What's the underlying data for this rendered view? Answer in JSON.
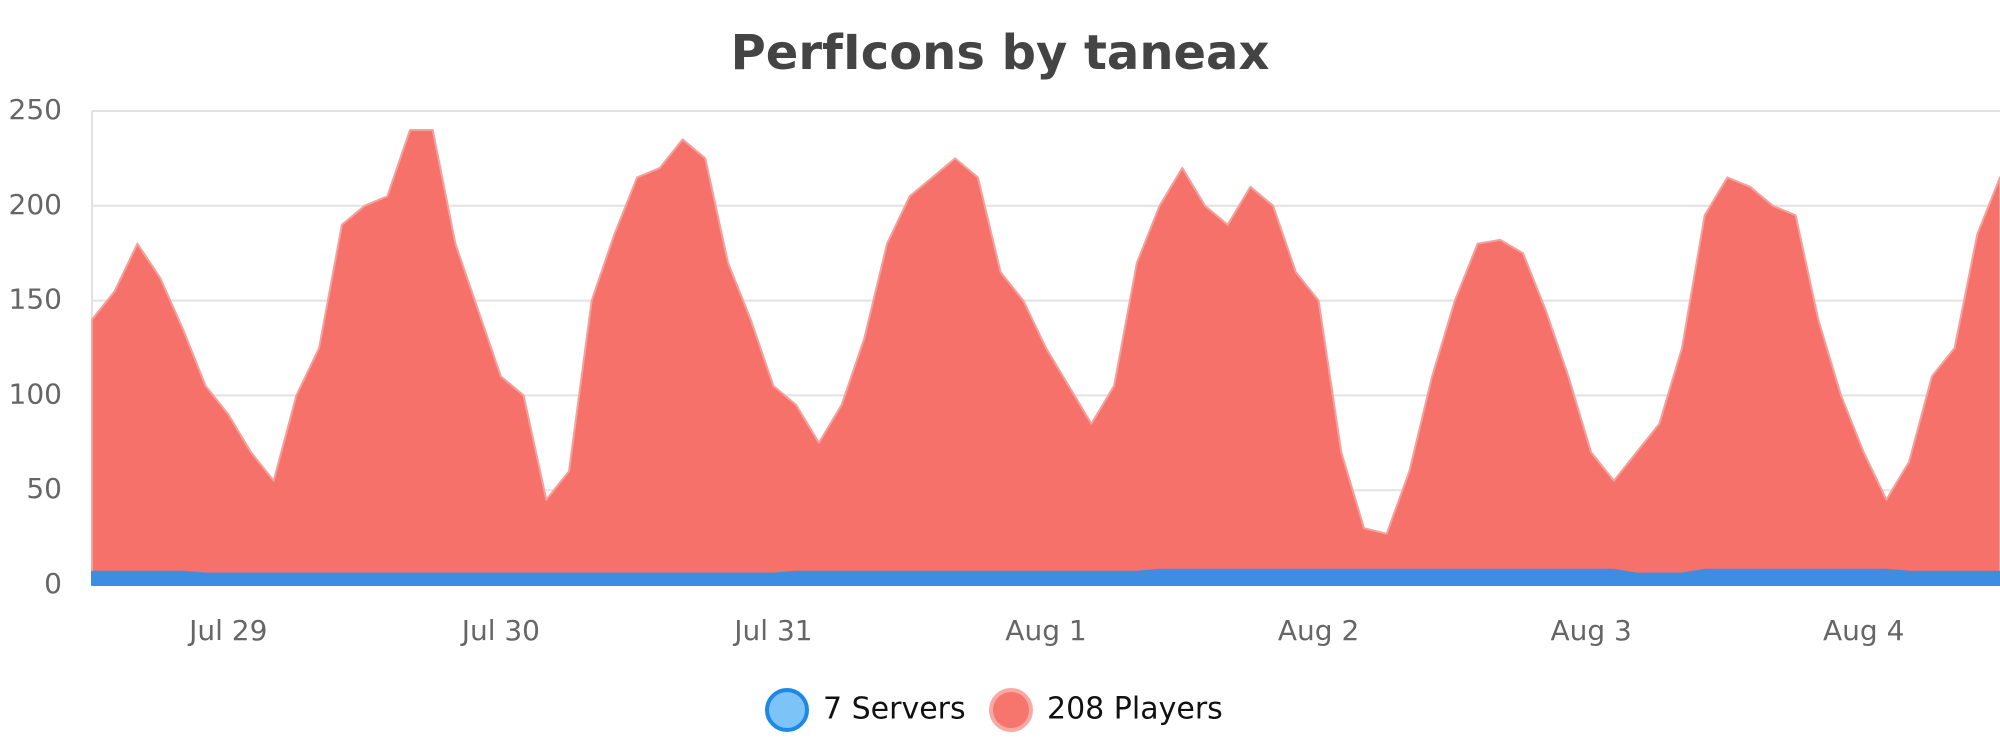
{
  "chart_data": {
    "type": "area",
    "title": "PerfIcons by taneax",
    "categories": [
      null,
      null,
      null,
      null,
      null,
      null,
      "Jul 29",
      null,
      null,
      null,
      null,
      null,
      null,
      null,
      null,
      null,
      null,
      null,
      "Jul 30",
      null,
      null,
      null,
      null,
      null,
      null,
      null,
      null,
      null,
      null,
      null,
      "Jul 31",
      null,
      null,
      null,
      null,
      null,
      null,
      null,
      null,
      null,
      null,
      null,
      "Aug 1",
      null,
      null,
      null,
      null,
      null,
      null,
      null,
      null,
      null,
      null,
      null,
      "Aug 2",
      null,
      null,
      null,
      null,
      null,
      null,
      null,
      null,
      null,
      null,
      null,
      "Aug 3",
      null,
      null,
      null,
      null,
      null,
      null,
      null,
      null,
      null,
      null,
      null,
      "Aug 4",
      null,
      null,
      null,
      null,
      null,
      null
    ],
    "series": [
      {
        "name": "208 Players",
        "color": "#f6716a",
        "values": [
          140,
          155,
          180,
          162,
          135,
          105,
          90,
          70,
          55,
          100,
          125,
          190,
          200,
          205,
          240,
          240,
          180,
          145,
          110,
          100,
          45,
          60,
          150,
          185,
          215,
          220,
          235,
          225,
          170,
          140,
          105,
          95,
          75,
          95,
          130,
          180,
          205,
          215,
          225,
          215,
          165,
          150,
          125,
          105,
          85,
          105,
          170,
          200,
          220,
          200,
          190,
          210,
          200,
          165,
          150,
          70,
          30,
          27,
          60,
          110,
          150,
          180,
          182,
          175,
          145,
          110,
          70,
          55,
          70,
          85,
          125,
          195,
          215,
          210,
          200,
          195,
          140,
          100,
          70,
          45,
          65,
          110,
          125,
          185,
          215
        ]
      },
      {
        "name": "7 Servers",
        "color": "#3d8ee3",
        "values": [
          7,
          7,
          7,
          7,
          7,
          6,
          6,
          6,
          6,
          6,
          6,
          6,
          6,
          6,
          6,
          6,
          6,
          6,
          6,
          6,
          6,
          6,
          6,
          6,
          6,
          6,
          6,
          6,
          6,
          6,
          6,
          7,
          7,
          7,
          7,
          7,
          7,
          7,
          7,
          7,
          7,
          7,
          7,
          7,
          7,
          7,
          7,
          8,
          8,
          8,
          8,
          8,
          8,
          8,
          8,
          8,
          8,
          8,
          8,
          8,
          8,
          8,
          8,
          8,
          8,
          8,
          8,
          8,
          6,
          6,
          6,
          8,
          8,
          8,
          8,
          8,
          8,
          8,
          8,
          8,
          7,
          7,
          7,
          7,
          7
        ]
      }
    ],
    "ylim": [
      0,
      250
    ],
    "yticks": [
      0,
      50,
      100,
      150,
      200,
      250
    ],
    "grid": true
  }
}
